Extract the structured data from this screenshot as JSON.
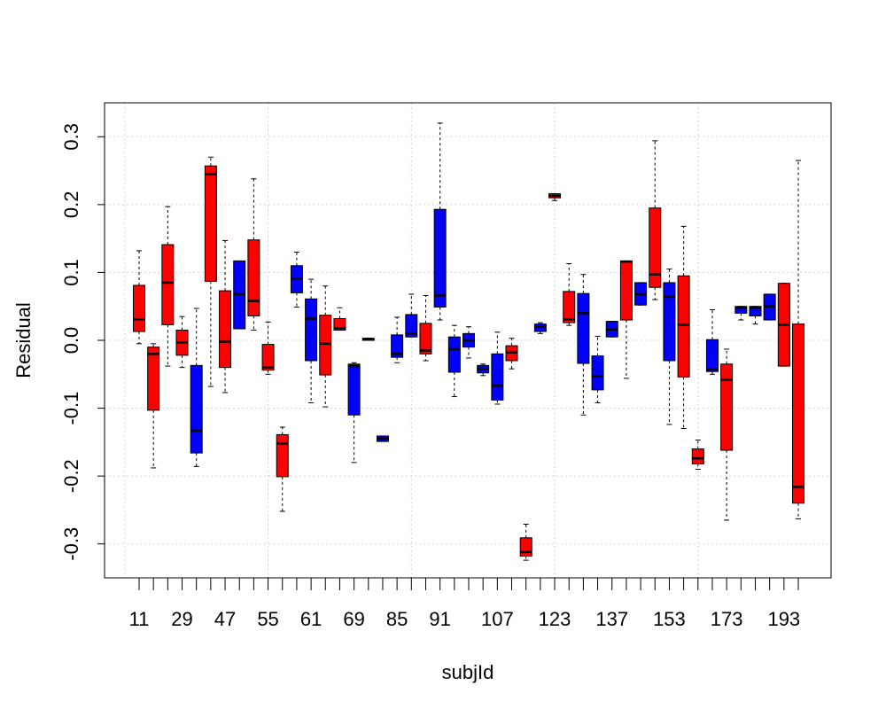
{
  "chart_data": {
    "type": "boxplot",
    "title": "",
    "xlabel": "subjId",
    "ylabel": "Residual",
    "ylim": [
      -0.35,
      0.35
    ],
    "yticks": [
      -0.3,
      -0.2,
      -0.1,
      0.0,
      0.1,
      0.2,
      0.3
    ],
    "ytick_labels": [
      "-0.3",
      "-0.2",
      "-0.1",
      "0.0",
      "0.1",
      "0.2",
      "0.3"
    ],
    "xtick_labels": [
      "11",
      "29",
      "47",
      "55",
      "61",
      "69",
      "85",
      "91",
      "107",
      "123",
      "137",
      "153",
      "173",
      "193"
    ],
    "xtick_label_positions": [
      1,
      4,
      7,
      10,
      13,
      16,
      19,
      22,
      26,
      30,
      34,
      38,
      42,
      46
    ],
    "grid": true,
    "colors": {
      "red": "#ff0000",
      "blue": "#0000ff"
    },
    "boxes": [
      {
        "pos": 1,
        "color": "red",
        "whisker_low": -0.005,
        "q1": 0.013,
        "median": 0.031,
        "q3": 0.081,
        "whisker_high": 0.132
      },
      {
        "pos": 2,
        "color": "red",
        "whisker_low": -0.188,
        "q1": -0.103,
        "median": -0.02,
        "q3": -0.01,
        "whisker_high": -0.005
      },
      {
        "pos": 3,
        "color": "red",
        "whisker_low": -0.038,
        "q1": 0.023,
        "median": 0.085,
        "q3": 0.141,
        "whisker_high": 0.197
      },
      {
        "pos": 4,
        "color": "red",
        "whisker_low": -0.04,
        "q1": -0.022,
        "median": -0.003,
        "q3": 0.015,
        "whisker_high": 0.035
      },
      {
        "pos": 5,
        "color": "blue",
        "whisker_low": -0.186,
        "q1": -0.166,
        "median": -0.133,
        "q3": -0.037,
        "whisker_high": 0.047
      },
      {
        "pos": 6,
        "color": "red",
        "whisker_low": -0.068,
        "q1": 0.087,
        "median": 0.245,
        "q3": 0.257,
        "whisker_high": 0.27
      },
      {
        "pos": 7,
        "color": "red",
        "whisker_low": -0.077,
        "q1": -0.04,
        "median": -0.002,
        "q3": 0.073,
        "whisker_high": 0.147
      },
      {
        "pos": 8,
        "color": "blue",
        "whisker_low": 0.017,
        "q1": 0.017,
        "median": 0.068,
        "q3": 0.117,
        "whisker_high": 0.117
      },
      {
        "pos": 9,
        "color": "red",
        "whisker_low": 0.015,
        "q1": 0.036,
        "median": 0.058,
        "q3": 0.148,
        "whisker_high": 0.238
      },
      {
        "pos": 10,
        "color": "red",
        "whisker_low": -0.05,
        "q1": -0.044,
        "median": -0.04,
        "q3": -0.006,
        "whisker_high": 0.027
      },
      {
        "pos": 11,
        "color": "red",
        "whisker_low": -0.252,
        "q1": -0.201,
        "median": -0.152,
        "q3": -0.139,
        "whisker_high": -0.128
      },
      {
        "pos": 12,
        "color": "blue",
        "whisker_low": 0.049,
        "q1": 0.07,
        "median": 0.091,
        "q3": 0.11,
        "whisker_high": 0.13
      },
      {
        "pos": 13,
        "color": "blue",
        "whisker_low": -0.092,
        "q1": -0.03,
        "median": 0.032,
        "q3": 0.061,
        "whisker_high": 0.09
      },
      {
        "pos": 14,
        "color": "red",
        "whisker_low": -0.098,
        "q1": -0.051,
        "median": -0.005,
        "q3": 0.037,
        "whisker_high": 0.08
      },
      {
        "pos": 15,
        "color": "red",
        "whisker_low": 0.015,
        "q1": 0.015,
        "median": 0.018,
        "q3": 0.032,
        "whisker_high": 0.048
      },
      {
        "pos": 16,
        "color": "blue",
        "whisker_low": -0.18,
        "q1": -0.11,
        "median": -0.038,
        "q3": -0.035,
        "whisker_high": -0.033
      },
      {
        "pos": 17,
        "color": "blue",
        "whisker_low": 0.0,
        "q1": 0.0,
        "median": 0.002,
        "q3": 0.003,
        "whisker_high": 0.003
      },
      {
        "pos": 18,
        "color": "blue",
        "whisker_low": -0.149,
        "q1": -0.149,
        "median": -0.145,
        "q3": -0.141,
        "whisker_high": -0.141
      },
      {
        "pos": 19,
        "color": "blue",
        "whisker_low": -0.033,
        "q1": -0.025,
        "median": -0.02,
        "q3": 0.008,
        "whisker_high": 0.034
      },
      {
        "pos": 20,
        "color": "blue",
        "whisker_low": 0.005,
        "q1": 0.005,
        "median": 0.01,
        "q3": 0.038,
        "whisker_high": 0.068
      },
      {
        "pos": 21,
        "color": "red",
        "whisker_low": -0.03,
        "q1": -0.02,
        "median": -0.015,
        "q3": 0.025,
        "whisker_high": 0.066
      },
      {
        "pos": 22,
        "color": "blue",
        "whisker_low": 0.03,
        "q1": 0.049,
        "median": 0.066,
        "q3": 0.193,
        "whisker_high": 0.32
      },
      {
        "pos": 23,
        "color": "blue",
        "whisker_low": -0.083,
        "q1": -0.047,
        "median": -0.013,
        "q3": 0.005,
        "whisker_high": 0.022
      },
      {
        "pos": 24,
        "color": "blue",
        "whisker_low": -0.026,
        "q1": -0.01,
        "median": 0.0,
        "q3": 0.01,
        "whisker_high": 0.02
      },
      {
        "pos": 25,
        "color": "blue",
        "whisker_low": -0.052,
        "q1": -0.048,
        "median": -0.042,
        "q3": -0.037,
        "whisker_high": -0.035
      },
      {
        "pos": 26,
        "color": "blue",
        "whisker_low": -0.094,
        "q1": -0.088,
        "median": -0.067,
        "q3": -0.02,
        "whisker_high": 0.012
      },
      {
        "pos": 27,
        "color": "red",
        "whisker_low": -0.042,
        "q1": -0.03,
        "median": -0.018,
        "q3": -0.008,
        "whisker_high": 0.003
      },
      {
        "pos": 28,
        "color": "red",
        "whisker_low": -0.324,
        "q1": -0.318,
        "median": -0.312,
        "q3": -0.291,
        "whisker_high": -0.271
      },
      {
        "pos": 29,
        "color": "blue",
        "whisker_low": 0.01,
        "q1": 0.013,
        "median": 0.02,
        "q3": 0.024,
        "whisker_high": 0.026
      },
      {
        "pos": 30,
        "color": "red",
        "whisker_low": 0.206,
        "q1": 0.21,
        "median": 0.213,
        "q3": 0.216,
        "whisker_high": 0.216
      },
      {
        "pos": 31,
        "color": "red",
        "whisker_low": 0.022,
        "q1": 0.026,
        "median": 0.031,
        "q3": 0.072,
        "whisker_high": 0.113
      },
      {
        "pos": 32,
        "color": "blue",
        "whisker_low": -0.11,
        "q1": -0.034,
        "median": 0.04,
        "q3": 0.069,
        "whisker_high": 0.097
      },
      {
        "pos": 33,
        "color": "blue",
        "whisker_low": -0.092,
        "q1": -0.073,
        "median": -0.053,
        "q3": -0.023,
        "whisker_high": 0.006
      },
      {
        "pos": 34,
        "color": "blue",
        "whisker_low": 0.005,
        "q1": 0.005,
        "median": 0.016,
        "q3": 0.028,
        "whisker_high": 0.028
      },
      {
        "pos": 35,
        "color": "red",
        "whisker_low": -0.056,
        "q1": 0.03,
        "median": 0.116,
        "q3": 0.117,
        "whisker_high": 0.117
      },
      {
        "pos": 36,
        "color": "blue",
        "whisker_low": 0.052,
        "q1": 0.052,
        "median": 0.068,
        "q3": 0.085,
        "whisker_high": 0.085
      },
      {
        "pos": 37,
        "color": "red",
        "whisker_low": 0.06,
        "q1": 0.078,
        "median": 0.097,
        "q3": 0.195,
        "whisker_high": 0.294
      },
      {
        "pos": 38,
        "color": "blue",
        "whisker_low": -0.124,
        "q1": -0.03,
        "median": 0.064,
        "q3": 0.085,
        "whisker_high": 0.105
      },
      {
        "pos": 39,
        "color": "red",
        "whisker_low": -0.13,
        "q1": -0.054,
        "median": 0.023,
        "q3": 0.095,
        "whisker_high": 0.168
      },
      {
        "pos": 40,
        "color": "red",
        "whisker_low": -0.19,
        "q1": -0.182,
        "median": -0.174,
        "q3": -0.16,
        "whisker_high": -0.147
      },
      {
        "pos": 41,
        "color": "blue",
        "whisker_low": -0.05,
        "q1": -0.046,
        "median": -0.043,
        "q3": 0.001,
        "whisker_high": 0.045
      },
      {
        "pos": 42,
        "color": "red",
        "whisker_low": -0.265,
        "q1": -0.162,
        "median": -0.058,
        "q3": -0.035,
        "whisker_high": -0.013
      },
      {
        "pos": 43,
        "color": "blue",
        "whisker_low": 0.03,
        "q1": 0.04,
        "median": 0.048,
        "q3": 0.05,
        "whisker_high": 0.05
      },
      {
        "pos": 44,
        "color": "blue",
        "whisker_low": 0.024,
        "q1": 0.036,
        "median": 0.048,
        "q3": 0.05,
        "whisker_high": 0.05
      },
      {
        "pos": 45,
        "color": "blue",
        "whisker_low": 0.03,
        "q1": 0.03,
        "median": 0.05,
        "q3": 0.068,
        "whisker_high": 0.068
      },
      {
        "pos": 46,
        "color": "red",
        "whisker_low": -0.038,
        "q1": -0.038,
        "median": 0.023,
        "q3": 0.084,
        "whisker_high": 0.084
      },
      {
        "pos": 47,
        "color": "red",
        "whisker_low": -0.263,
        "q1": -0.24,
        "median": -0.216,
        "q3": 0.024,
        "whisker_high": 0.265
      }
    ]
  }
}
